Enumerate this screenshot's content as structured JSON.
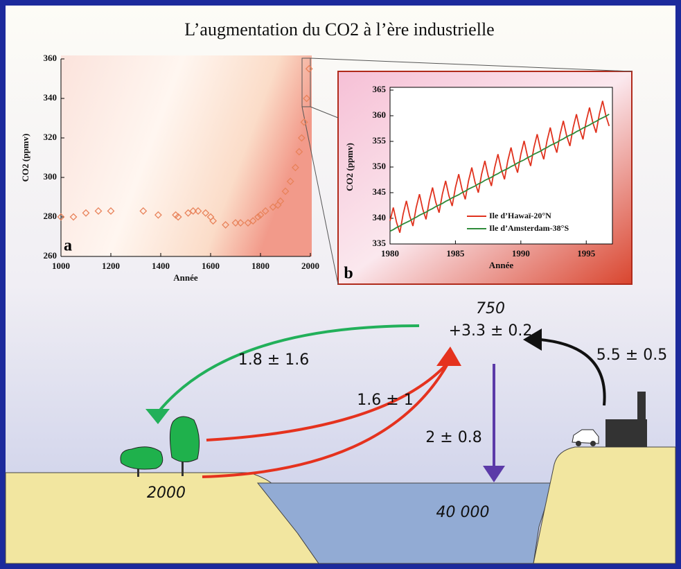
{
  "title": "L’augmentation du CO2 à l’ère industrielle",
  "chart_data": [
    {
      "type": "scatter",
      "xlabel": "Année",
      "ylabel": "CO2 (ppmv)",
      "annotation": "a",
      "color": "#e8825a",
      "x": [
        1000,
        1050,
        1100,
        1150,
        1200,
        1330,
        1390,
        1460,
        1470,
        1510,
        1530,
        1550,
        1580,
        1600,
        1610,
        1660,
        1700,
        1720,
        1750,
        1770,
        1790,
        1800,
        1820,
        1850,
        1870,
        1880,
        1900,
        1920,
        1940,
        1955,
        1965,
        1975,
        1985,
        1995
      ],
      "values": [
        280,
        280,
        282,
        283,
        283,
        283,
        281,
        281,
        280,
        282,
        283,
        283,
        282,
        280,
        278,
        276,
        277,
        277,
        277,
        278,
        280,
        281,
        283,
        285,
        286,
        288,
        293,
        298,
        305,
        313,
        320,
        328,
        340,
        355
      ],
      "xlim": [
        1000,
        2000
      ],
      "ylim": [
        260,
        360
      ],
      "xticks": [
        1000,
        1200,
        1400,
        1600,
        1800,
        2000
      ],
      "yticks": [
        260,
        280,
        300,
        320,
        340,
        360
      ]
    },
    {
      "type": "line",
      "xlabel": "Année",
      "ylabel": "CO2 (ppmv)",
      "annotation": "b",
      "legend": "lower right",
      "x": [
        1980,
        1980.25,
        1980.5,
        1980.75,
        1981,
        1981.25,
        1981.5,
        1981.75,
        1982,
        1982.25,
        1982.5,
        1982.75,
        1983,
        1983.25,
        1983.5,
        1983.75,
        1984,
        1984.25,
        1984.5,
        1984.75,
        1985,
        1985.25,
        1985.5,
        1985.75,
        1986,
        1986.25,
        1986.5,
        1986.75,
        1987,
        1987.25,
        1987.5,
        1987.75,
        1988,
        1988.25,
        1988.5,
        1988.75,
        1989,
        1989.25,
        1989.5,
        1989.75,
        1990,
        1990.25,
        1990.5,
        1990.75,
        1991,
        1991.25,
        1991.5,
        1991.75,
        1992,
        1992.25,
        1992.5,
        1992.75,
        1993,
        1993.25,
        1993.5,
        1993.75,
        1994,
        1994.25,
        1994.5,
        1994.75,
        1995,
        1995.25,
        1995.5,
        1995.75,
        1996,
        1996.25,
        1996.5,
        1996.75
      ],
      "series": [
        {
          "name": "Ile d’Hawaï-20°N",
          "color": "#e0321e",
          "values": [
            339.5,
            342.1,
            339.2,
            337.2,
            340.8,
            343.4,
            340.5,
            338.5,
            342.1,
            344.7,
            341.8,
            339.8,
            343.4,
            346.0,
            343.1,
            341.1,
            344.7,
            347.3,
            344.4,
            342.4,
            346.0,
            348.6,
            345.7,
            343.7,
            347.3,
            349.9,
            347.0,
            345.0,
            348.6,
            351.2,
            348.3,
            346.3,
            349.9,
            352.5,
            349.6,
            347.6,
            351.2,
            353.8,
            350.9,
            348.9,
            352.5,
            355.1,
            352.2,
            350.2,
            353.8,
            356.4,
            353.5,
            351.5,
            355.1,
            357.7,
            354.8,
            352.8,
            356.4,
            359.0,
            356.1,
            354.1,
            357.7,
            360.3,
            357.4,
            355.4,
            359.0,
            361.6,
            358.7,
            356.7,
            360.3,
            362.9,
            360.0,
            358.0
          ]
        },
        {
          "name": "Ile d’Amsterdam-38°S",
          "color": "#2e8b3a",
          "values": [
            337.5,
            337.8,
            338.2,
            338.5,
            338.9,
            339.2,
            339.5,
            339.9,
            340.2,
            340.6,
            340.9,
            341.2,
            341.6,
            341.9,
            342.3,
            342.6,
            342.9,
            343.3,
            343.6,
            344.0,
            344.3,
            344.6,
            345.0,
            345.3,
            345.7,
            346.0,
            346.3,
            346.7,
            347.0,
            347.4,
            347.7,
            348.0,
            348.4,
            348.7,
            349.1,
            349.4,
            349.7,
            350.1,
            350.4,
            350.8,
            351.1,
            351.4,
            351.8,
            352.1,
            352.5,
            352.8,
            353.1,
            353.5,
            353.8,
            354.2,
            354.5,
            354.8,
            355.2,
            355.5,
            355.9,
            356.2,
            356.5,
            356.9,
            357.2,
            357.6,
            357.9,
            358.2,
            358.6,
            358.9,
            359.3,
            359.6,
            359.9,
            360.3
          ]
        }
      ],
      "xlim": [
        1980,
        1997
      ],
      "ylim": [
        335,
        365
      ],
      "xticks": [
        1980,
        1985,
        1990,
        1995
      ],
      "yticks": [
        335,
        340,
        345,
        350,
        355,
        360,
        365
      ]
    }
  ],
  "diagram": {
    "atmosphere_stock": "750",
    "atmosphere_change": "+3.3 ± 0.2",
    "vegetation_uptake": "1.8 ± 1.6",
    "deforestation": "1.6 ± 1",
    "fossil_emissions": "5.5 ± 0.5",
    "ocean_uptake": "2 ± 0.8",
    "vegetation_stock": "2000",
    "ocean_stock": "40 000"
  }
}
